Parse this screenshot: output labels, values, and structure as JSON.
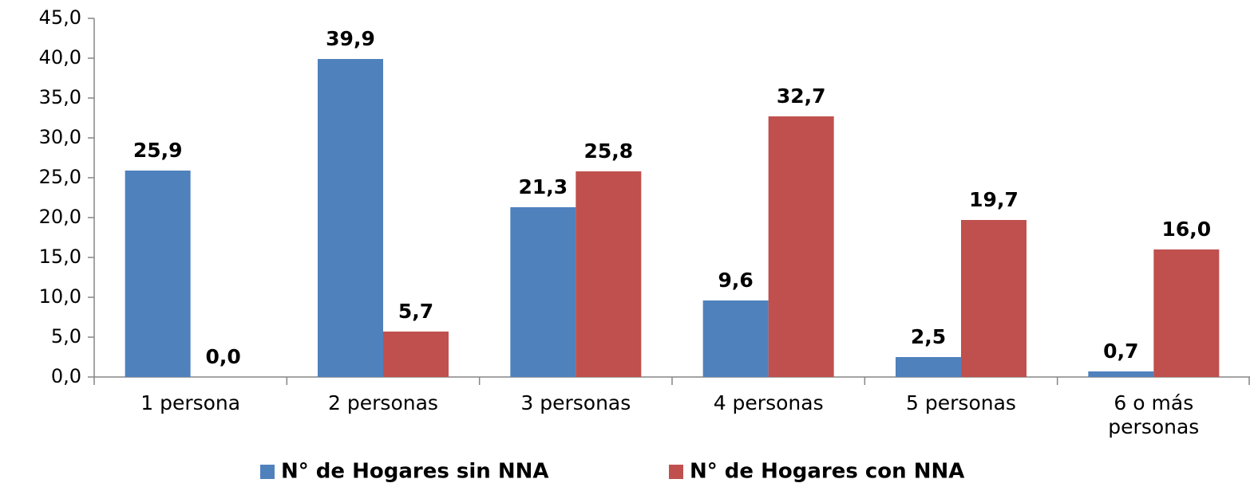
{
  "chart_data": {
    "type": "bar",
    "categories": [
      "1 persona",
      "2 personas",
      "3 personas",
      "4 personas",
      "5 personas",
      "6 o más personas"
    ],
    "series": [
      {
        "name": "N° de Hogares sin NNA",
        "color": "#4f81bd",
        "values": [
          25.9,
          39.9,
          21.3,
          9.6,
          2.5,
          0.7
        ],
        "value_labels": [
          "25,9",
          "39,9",
          "21,3",
          "9,6",
          "2,5",
          "0,7"
        ]
      },
      {
        "name": "N° de Hogares con NNA",
        "color": "#c0504d",
        "values": [
          0.0,
          5.7,
          25.8,
          32.7,
          19.7,
          16.0
        ],
        "value_labels": [
          "0,0",
          "5,7",
          "25,8",
          "32,7",
          "19,7",
          "16,0"
        ]
      }
    ],
    "ylim": [
      0,
      45
    ],
    "yticks": [
      {
        "value": 0,
        "label": "0,0"
      },
      {
        "value": 5,
        "label": "5,0"
      },
      {
        "value": 10,
        "label": "10,0"
      },
      {
        "value": 15,
        "label": "15,0"
      },
      {
        "value": 20,
        "label": "20,0"
      },
      {
        "value": 25,
        "label": "25,0"
      },
      {
        "value": 30,
        "label": "30,0"
      },
      {
        "value": 35,
        "label": "35,0"
      },
      {
        "value": 40,
        "label": "40,0"
      },
      {
        "value": 45,
        "label": "45,0"
      }
    ],
    "grid": false,
    "legend": "bottom"
  }
}
